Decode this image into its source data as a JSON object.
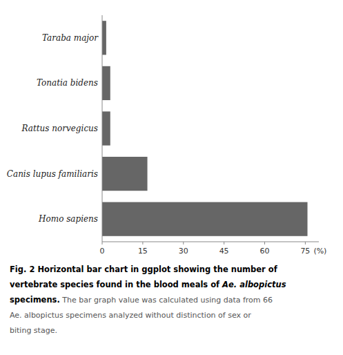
{
  "chart_data": {
    "type": "bar",
    "orientation": "horizontal",
    "categories": [
      "Homo sapiens",
      "Canis lupus familiaris",
      "Rattus norvegicus",
      "Tonatia bidens",
      "Taraba major"
    ],
    "values": [
      75.8,
      16.7,
      3.0,
      3.0,
      1.5
    ],
    "color": "#666666",
    "xlim": [
      0,
      80
    ],
    "xticks": [
      0,
      15,
      30,
      45,
      60,
      75
    ],
    "xlabel": "(%)",
    "grid": false,
    "annotations": [
      [
        "Fig. 2 Horizontal bar chart in ggplot showing the number of"
      ],
      [
        "vertebrate species found in the blood meals of ",
        "Ae. albopictus"
      ],
      [
        "specimens.",
        " The bar graph value was calculated using data from 66"
      ],
      [
        "Ae. albopictus specimens analyzed without distinction of sex or"
      ],
      [
        "biting stage."
      ]
    ]
  }
}
